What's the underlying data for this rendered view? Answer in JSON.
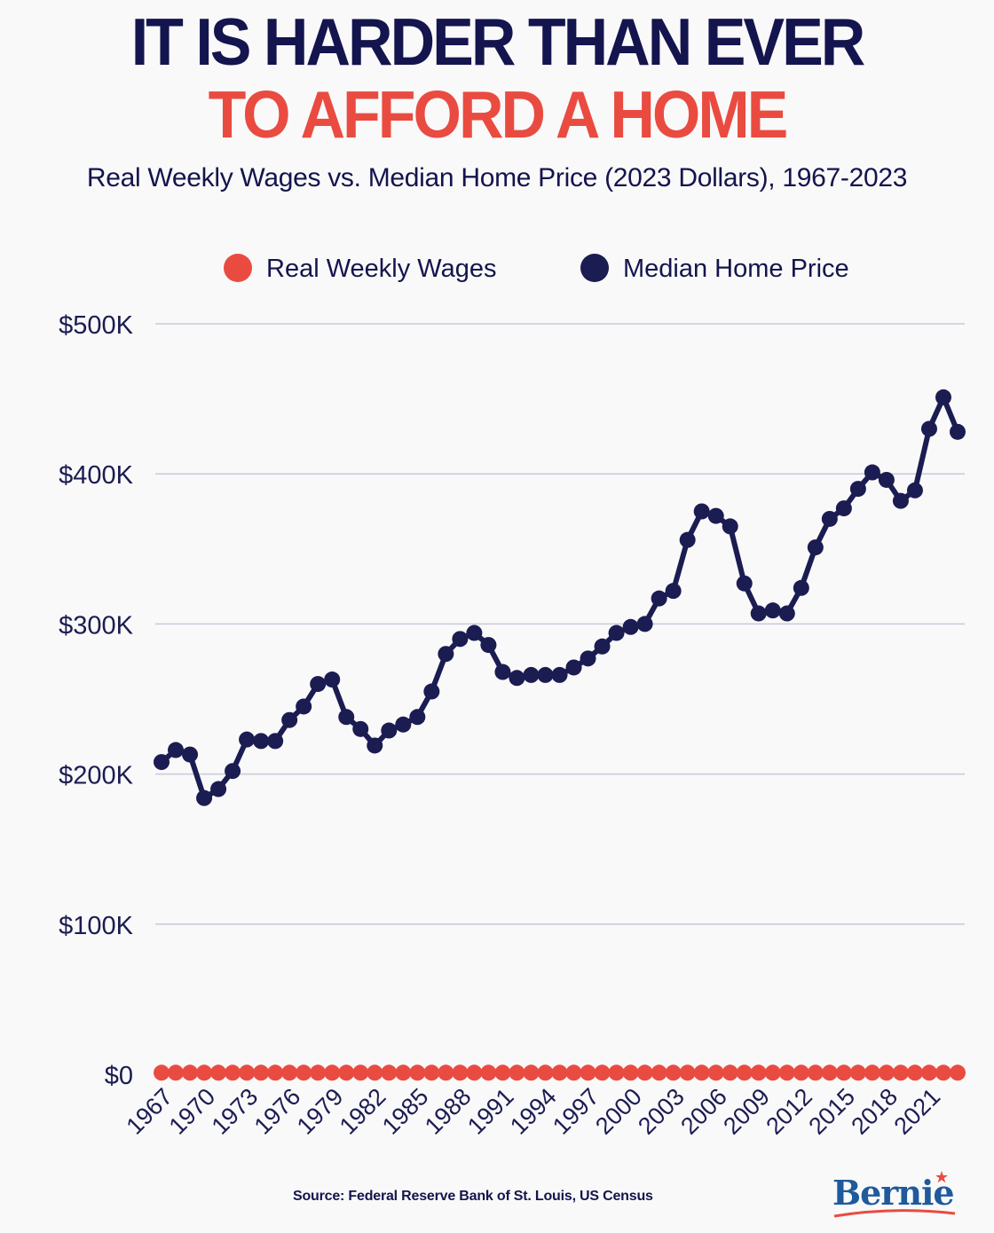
{
  "headline": {
    "line1": "IT IS HARDER THAN EVER",
    "line2": "TO AFFORD A HOME"
  },
  "subtitle": "Real Weekly Wages vs. Median Home Price (2023 Dollars), 1967-2023",
  "source": "Source: Federal Reserve Bank of St. Louis, US Census",
  "logo": {
    "text": "Bernie"
  },
  "colors": {
    "navy": "#1b1c52",
    "red": "#ea4b40",
    "grid": "#c9c9dc"
  },
  "chart_data": {
    "type": "line",
    "x": [
      1967,
      1968,
      1969,
      1970,
      1971,
      1972,
      1973,
      1974,
      1975,
      1976,
      1977,
      1978,
      1979,
      1980,
      1981,
      1982,
      1983,
      1984,
      1985,
      1986,
      1987,
      1988,
      1989,
      1990,
      1991,
      1992,
      1993,
      1994,
      1995,
      1996,
      1997,
      1998,
      1999,
      2000,
      2001,
      2002,
      2003,
      2004,
      2005,
      2006,
      2007,
      2008,
      2009,
      2010,
      2011,
      2012,
      2013,
      2014,
      2015,
      2016,
      2017,
      2018,
      2019,
      2020,
      2021,
      2022,
      2023
    ],
    "x_tick_labels": [
      "1967",
      "1970",
      "1973",
      "1976",
      "1979",
      "1982",
      "1985",
      "1988",
      "1991",
      "1994",
      "1997",
      "2000",
      "2003",
      "2006",
      "2009",
      "2012",
      "2015",
      "2018",
      "2021"
    ],
    "y_tick_labels": [
      "$0",
      "$100K",
      "$200K",
      "$300K",
      "$400K",
      "$500K"
    ],
    "y_ticks": [
      0,
      100000,
      200000,
      300000,
      400000,
      500000
    ],
    "ylim": [
      0,
      500000
    ],
    "legend_position": "top",
    "grid": true,
    "series": [
      {
        "name": "Real Weekly Wages",
        "color": "#ea4b40",
        "marker_only": true,
        "values": [
          1000,
          1000,
          1000,
          1000,
          1000,
          1000,
          1000,
          1000,
          1000,
          1000,
          1000,
          1000,
          1000,
          1000,
          1000,
          1000,
          1000,
          1000,
          1000,
          1000,
          1000,
          1000,
          1000,
          1000,
          1000,
          1000,
          1000,
          1000,
          1000,
          1000,
          1000,
          1000,
          1000,
          1000,
          1000,
          1000,
          1000,
          1000,
          1000,
          1000,
          1000,
          1000,
          1000,
          1000,
          1000,
          1000,
          1000,
          1000,
          1000,
          1000,
          1000,
          1000,
          1000,
          1000,
          1000,
          1000,
          1000
        ]
      },
      {
        "name": "Median Home Price",
        "color": "#1b1c52",
        "values": [
          208000,
          216000,
          213000,
          184000,
          190000,
          202000,
          223000,
          222000,
          222000,
          236000,
          245000,
          260000,
          263000,
          238000,
          230000,
          219000,
          229000,
          233000,
          238000,
          255000,
          280000,
          290000,
          294000,
          286000,
          268000,
          264000,
          266000,
          266000,
          266000,
          271000,
          277000,
          285000,
          294000,
          298000,
          300000,
          317000,
          322000,
          356000,
          375000,
          372000,
          365000,
          327000,
          307000,
          309000,
          307000,
          324000,
          351000,
          370000,
          377000,
          390000,
          401000,
          396000,
          382000,
          389000,
          430000,
          451000,
          428000
        ]
      }
    ]
  }
}
